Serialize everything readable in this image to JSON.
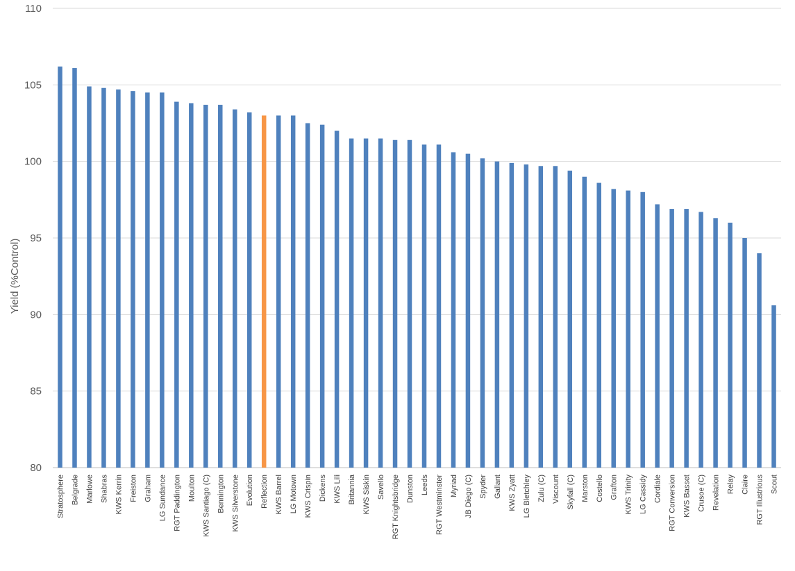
{
  "chart_data": {
    "type": "bar",
    "title": "",
    "xlabel": "",
    "ylabel": "Yield (%Control)",
    "ylim": [
      80,
      110
    ],
    "yticks": [
      80,
      85,
      90,
      95,
      100,
      105,
      110
    ],
    "grid": true,
    "legend": "none",
    "colors": {
      "default": "#4f81bd",
      "highlight": "#f79646",
      "grid": "#d9d9d9"
    },
    "highlight_category": "Reflection",
    "categories": [
      "Stratosphere",
      "Belgrade",
      "Marlowe",
      "Shabras",
      "KWS Kerrin",
      "Freiston",
      "Graham",
      "LG Sundance",
      "RGT Paddington",
      "Moulton",
      "KWS Santiago (C)",
      "Bennington",
      "KWS Silverstone",
      "Evolution",
      "Reflection",
      "KWS Barrel",
      "LG Motown",
      "KWS Crispin",
      "Dickens",
      "KWS Lili",
      "Britannia",
      "KWS Siskin",
      "Savello",
      "RGT Knightsbridge",
      "Dunston",
      "Leeds",
      "RGT Westminster",
      "Myriad",
      "JB Diego (C)",
      "Spyder",
      "Gallant",
      "KWS Zyatt",
      "LG Bletchley",
      "Zulu (C)",
      "Viscount",
      "Skyfall (C)",
      "Marston",
      "Costello",
      "Grafton",
      "KWS Trinity",
      "LG Cassidy",
      "Cordiale",
      "RGT Conversion",
      "KWS Basset",
      "Crusoe (C)",
      "Revelation",
      "Relay",
      "Claire",
      "RGT Illustrious",
      "Scout"
    ],
    "values": [
      106.2,
      106.1,
      104.9,
      104.8,
      104.7,
      104.6,
      104.5,
      104.5,
      103.9,
      103.8,
      103.7,
      103.7,
      103.4,
      103.2,
      103.0,
      103.0,
      103.0,
      102.5,
      102.4,
      102.0,
      101.5,
      101.5,
      101.5,
      101.4,
      101.4,
      101.1,
      101.1,
      100.6,
      100.5,
      100.2,
      100.0,
      99.9,
      99.8,
      99.7,
      99.7,
      99.4,
      99.0,
      98.6,
      98.2,
      98.1,
      98.0,
      97.2,
      96.9,
      96.9,
      96.7,
      96.3,
      96.0,
      95.0,
      94.0,
      90.6
    ]
  }
}
